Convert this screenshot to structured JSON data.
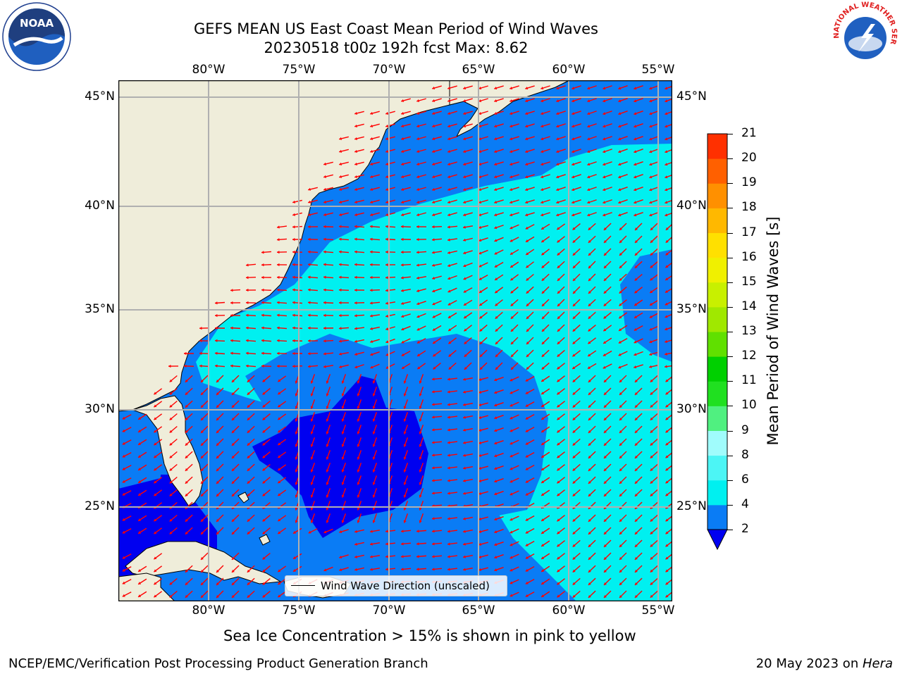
{
  "title": {
    "line1": "GEFS MEAN US East Coast Mean Period of Wind Waves",
    "line2": "20230518 t00z 192h fcst   Max: 8.62"
  },
  "logos": {
    "noaa_text": "NOAA",
    "nws_text": "NATIONAL WEATHER SERVICE"
  },
  "map": {
    "lon_ticks": [
      "80°W",
      "75°W",
      "70°W",
      "65°W",
      "60°W",
      "55°W"
    ],
    "lat_ticks": [
      "45°N",
      "40°N",
      "35°N",
      "30°N",
      "25°N"
    ],
    "legend_label": "Wind Wave Direction (unscaled)",
    "land_color": "#efedda",
    "arrow_color": "#ff0000",
    "grid_color": "#b0b0b0"
  },
  "colorbar": {
    "label": "Mean Period of Wind Waves [s]",
    "ticks": [
      "2",
      "4",
      "6",
      "8",
      "9",
      "10",
      "11",
      "12",
      "13",
      "14",
      "15",
      "16",
      "17",
      "18",
      "19",
      "20",
      "21"
    ],
    "colors": [
      "#0a7cf5",
      "#00f0f0",
      "#4cf5f5",
      "#a0fcfc",
      "#50f080",
      "#20e020",
      "#00d000",
      "#60e000",
      "#a0e800",
      "#c8f000",
      "#f0f000",
      "#ffe000",
      "#ffb800",
      "#ff9000",
      "#ff6000",
      "#ff3000",
      "#ff0000"
    ],
    "under_color": "#0000f0"
  },
  "note": "Sea Ice Concentration > 15% is shown in pink to yellow",
  "footer": {
    "left": "NCEP/EMC/Verification Post Processing Product Generation Branch",
    "right_date": "20 May 2023 on ",
    "right_machine": "Hera"
  }
}
